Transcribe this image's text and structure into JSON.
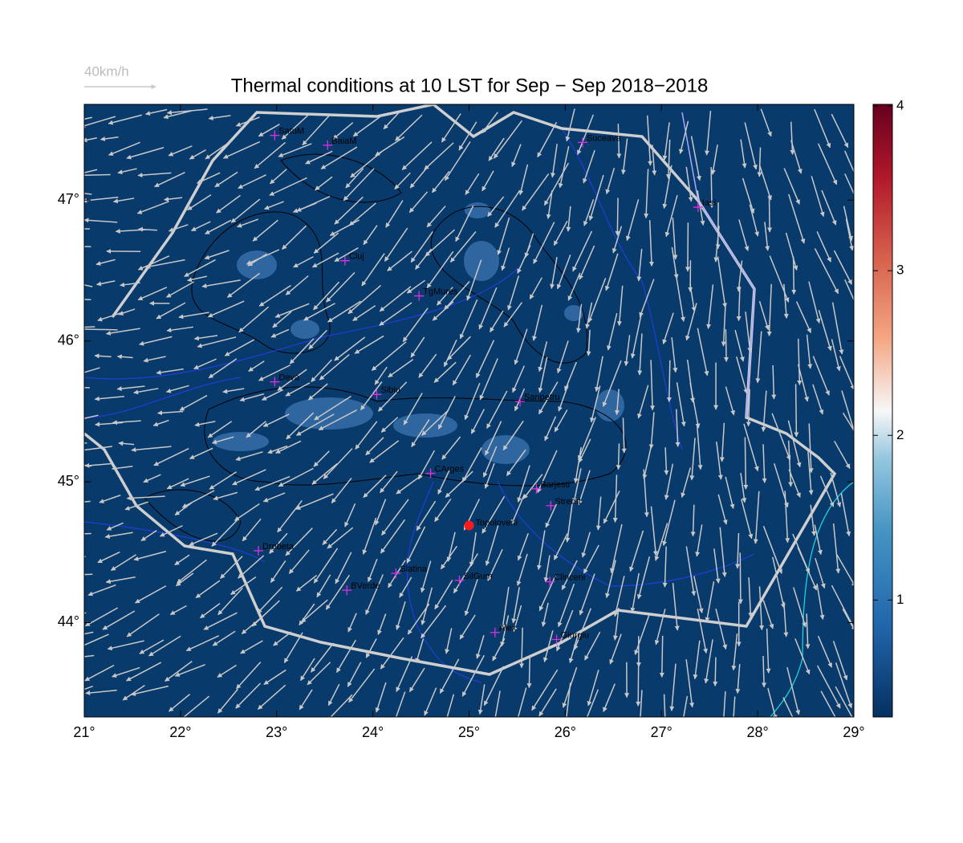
{
  "map": {
    "title": "Thermal conditions at 10 LST for Sep − Sep  2018−2018",
    "vector_legend": "40km/h",
    "xlim": [
      21,
      29
    ],
    "ylim": [
      43.33,
      47.68
    ],
    "xticks": [
      {
        "value": 21,
        "label": "21°"
      },
      {
        "value": 22,
        "label": "22°"
      },
      {
        "value": 23,
        "label": "23°"
      },
      {
        "value": 24,
        "label": "24°"
      },
      {
        "value": 25,
        "label": "25°"
      },
      {
        "value": 26,
        "label": "26°"
      },
      {
        "value": 27,
        "label": "27°"
      },
      {
        "value": 28,
        "label": "28°"
      },
      {
        "value": 29,
        "label": "29°"
      }
    ],
    "yticks": [
      {
        "value": 44,
        "label": "44°"
      },
      {
        "value": 45,
        "label": "45°"
      },
      {
        "value": 46,
        "label": "46°"
      },
      {
        "value": 47,
        "label": "47°"
      }
    ],
    "colorbar": {
      "clim": [
        0.29,
        4.01
      ],
      "ticks": [
        1,
        2,
        3,
        4
      ]
    },
    "cities": [
      {
        "name": "SatuM",
        "lon": 22.98,
        "lat": 47.46
      },
      {
        "name": "BaiaM",
        "lon": 23.53,
        "lat": 47.39
      },
      {
        "name": "Suceava",
        "lon": 26.18,
        "lat": 47.41
      },
      {
        "name": "Iasi",
        "lon": 27.38,
        "lat": 46.95
      },
      {
        "name": "Cluj",
        "lon": 23.71,
        "lat": 46.57
      },
      {
        "name": "TgMures",
        "lon": 24.48,
        "lat": 46.32
      },
      {
        "name": "Deva",
        "lon": 22.98,
        "lat": 45.71
      },
      {
        "name": "Sibiu",
        "lon": 24.04,
        "lat": 45.62
      },
      {
        "name": "Sanpetru",
        "lon": 25.53,
        "lat": 45.57
      },
      {
        "name": "CArges",
        "lon": 24.6,
        "lat": 45.06
      },
      {
        "name": "Barjesti",
        "lon": 25.7,
        "lat": 44.95
      },
      {
        "name": "Stremt",
        "lon": 25.85,
        "lat": 44.83
      },
      {
        "name": "Drobeta",
        "lon": 22.81,
        "lat": 44.51
      },
      {
        "name": "Slatina",
        "lon": 24.24,
        "lat": 44.35
      },
      {
        "name": "SilGum",
        "lon": 24.9,
        "lat": 44.3
      },
      {
        "name": "Clinceni",
        "lon": 25.84,
        "lat": 44.29
      },
      {
        "name": "BVerde",
        "lon": 23.73,
        "lat": 44.23
      },
      {
        "name": "Alex",
        "lon": 25.27,
        "lat": 43.93
      },
      {
        "name": "Giurgiu",
        "lon": 25.91,
        "lat": 43.88
      }
    ],
    "site": {
      "name": "Topoloveni",
      "lon": 25.0,
      "lat": 44.69
    }
  }
}
